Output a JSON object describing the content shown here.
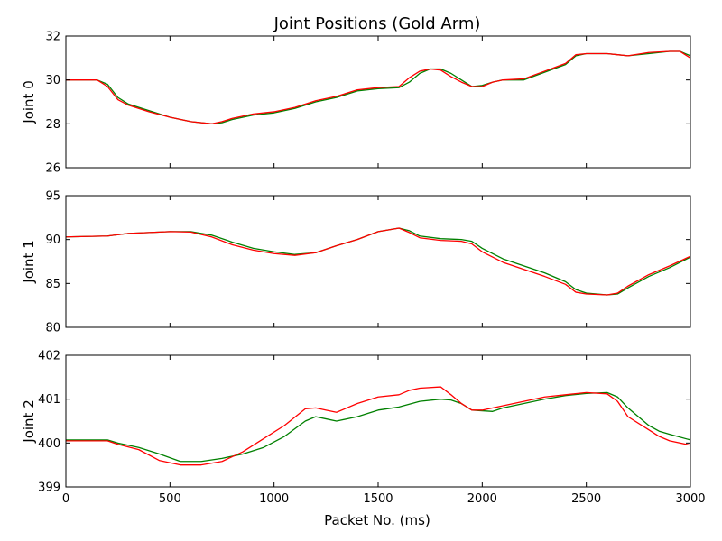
{
  "figure": {
    "title": "Joint Positions (Gold Arm)",
    "xlabel": "Packet No. (ms)"
  },
  "colors": {
    "series_a": "#008000",
    "series_b": "#ff0000",
    "axes": "#000000",
    "background": "#ffffff"
  },
  "chart_data": [
    {
      "type": "line",
      "ylabel": "Joint 0",
      "xlim": [
        0,
        3000
      ],
      "ylim": [
        26,
        32
      ],
      "yticks": [
        26,
        28,
        30,
        32
      ],
      "xticks": [],
      "grid": false,
      "series": [
        {
          "color": "#008000",
          "points": [
            [
              0,
              30.0
            ],
            [
              150,
              30.0
            ],
            [
              200,
              29.8
            ],
            [
              250,
              29.2
            ],
            [
              300,
              28.9
            ],
            [
              400,
              28.6
            ],
            [
              500,
              28.3
            ],
            [
              600,
              28.1
            ],
            [
              700,
              28.0
            ],
            [
              750,
              28.05
            ],
            [
              800,
              28.2
            ],
            [
              900,
              28.4
            ],
            [
              1000,
              28.5
            ],
            [
              1100,
              28.7
            ],
            [
              1200,
              29.0
            ],
            [
              1300,
              29.2
            ],
            [
              1400,
              29.5
            ],
            [
              1500,
              29.6
            ],
            [
              1600,
              29.65
            ],
            [
              1650,
              29.9
            ],
            [
              1700,
              30.3
            ],
            [
              1750,
              30.5
            ],
            [
              1800,
              30.5
            ],
            [
              1850,
              30.3
            ],
            [
              1900,
              30.0
            ],
            [
              1950,
              29.7
            ],
            [
              2000,
              29.75
            ],
            [
              2050,
              29.9
            ],
            [
              2100,
              30.0
            ],
            [
              2200,
              30.0
            ],
            [
              2300,
              30.35
            ],
            [
              2400,
              30.7
            ],
            [
              2450,
              31.1
            ],
            [
              2500,
              31.2
            ],
            [
              2600,
              31.2
            ],
            [
              2650,
              31.15
            ],
            [
              2700,
              31.1
            ],
            [
              2800,
              31.2
            ],
            [
              2900,
              31.3
            ],
            [
              2950,
              31.3
            ],
            [
              3000,
              31.1
            ]
          ]
        },
        {
          "color": "#ff0000",
          "points": [
            [
              0,
              30.0
            ],
            [
              150,
              30.0
            ],
            [
              200,
              29.7
            ],
            [
              250,
              29.1
            ],
            [
              300,
              28.85
            ],
            [
              400,
              28.55
            ],
            [
              500,
              28.3
            ],
            [
              600,
              28.1
            ],
            [
              700,
              28.0
            ],
            [
              750,
              28.1
            ],
            [
              800,
              28.25
            ],
            [
              900,
              28.45
            ],
            [
              1000,
              28.55
            ],
            [
              1100,
              28.75
            ],
            [
              1200,
              29.05
            ],
            [
              1300,
              29.25
            ],
            [
              1400,
              29.55
            ],
            [
              1500,
              29.65
            ],
            [
              1600,
              29.7
            ],
            [
              1650,
              30.1
            ],
            [
              1700,
              30.4
            ],
            [
              1750,
              30.5
            ],
            [
              1800,
              30.45
            ],
            [
              1850,
              30.15
            ],
            [
              1900,
              29.9
            ],
            [
              1950,
              29.7
            ],
            [
              2000,
              29.7
            ],
            [
              2050,
              29.9
            ],
            [
              2100,
              30.0
            ],
            [
              2200,
              30.05
            ],
            [
              2300,
              30.4
            ],
            [
              2400,
              30.75
            ],
            [
              2450,
              31.15
            ],
            [
              2500,
              31.2
            ],
            [
              2600,
              31.2
            ],
            [
              2650,
              31.15
            ],
            [
              2700,
              31.1
            ],
            [
              2800,
              31.25
            ],
            [
              2900,
              31.3
            ],
            [
              2950,
              31.3
            ],
            [
              3000,
              31.0
            ]
          ]
        }
      ]
    },
    {
      "type": "line",
      "ylabel": "Joint 1",
      "xlim": [
        0,
        3000
      ],
      "ylim": [
        80,
        95
      ],
      "yticks": [
        80,
        85,
        90,
        95
      ],
      "xticks": [],
      "grid": false,
      "series": [
        {
          "color": "#008000",
          "points": [
            [
              0,
              90.3
            ],
            [
              200,
              90.4
            ],
            [
              300,
              90.7
            ],
            [
              400,
              90.8
            ],
            [
              500,
              90.9
            ],
            [
              600,
              90.9
            ],
            [
              700,
              90.5
            ],
            [
              800,
              89.7
            ],
            [
              900,
              89.0
            ],
            [
              1000,
              88.6
            ],
            [
              1100,
              88.3
            ],
            [
              1200,
              88.5
            ],
            [
              1300,
              89.3
            ],
            [
              1400,
              90.0
            ],
            [
              1500,
              90.9
            ],
            [
              1600,
              91.3
            ],
            [
              1650,
              91.0
            ],
            [
              1700,
              90.4
            ],
            [
              1800,
              90.1
            ],
            [
              1900,
              90.0
            ],
            [
              1950,
              89.8
            ],
            [
              2000,
              89.0
            ],
            [
              2100,
              87.8
            ],
            [
              2200,
              87.0
            ],
            [
              2300,
              86.2
            ],
            [
              2400,
              85.2
            ],
            [
              2450,
              84.3
            ],
            [
              2500,
              83.9
            ],
            [
              2600,
              83.7
            ],
            [
              2650,
              83.8
            ],
            [
              2700,
              84.5
            ],
            [
              2800,
              85.8
            ],
            [
              2900,
              86.8
            ],
            [
              3000,
              88.0
            ]
          ]
        },
        {
          "color": "#ff0000",
          "points": [
            [
              0,
              90.3
            ],
            [
              200,
              90.4
            ],
            [
              300,
              90.7
            ],
            [
              400,
              90.8
            ],
            [
              500,
              90.9
            ],
            [
              600,
              90.85
            ],
            [
              700,
              90.3
            ],
            [
              800,
              89.4
            ],
            [
              900,
              88.8
            ],
            [
              1000,
              88.4
            ],
            [
              1100,
              88.2
            ],
            [
              1200,
              88.5
            ],
            [
              1300,
              89.3
            ],
            [
              1400,
              90.0
            ],
            [
              1500,
              90.9
            ],
            [
              1600,
              91.3
            ],
            [
              1650,
              90.8
            ],
            [
              1700,
              90.2
            ],
            [
              1800,
              89.9
            ],
            [
              1900,
              89.8
            ],
            [
              1950,
              89.5
            ],
            [
              2000,
              88.6
            ],
            [
              2100,
              87.4
            ],
            [
              2200,
              86.6
            ],
            [
              2300,
              85.8
            ],
            [
              2400,
              84.9
            ],
            [
              2450,
              84.0
            ],
            [
              2500,
              83.8
            ],
            [
              2600,
              83.7
            ],
            [
              2650,
              83.9
            ],
            [
              2700,
              84.7
            ],
            [
              2800,
              86.0
            ],
            [
              2900,
              87.0
            ],
            [
              3000,
              88.1
            ]
          ]
        }
      ]
    },
    {
      "type": "line",
      "ylabel": "Joint 2",
      "xlim": [
        0,
        3000
      ],
      "ylim": [
        399,
        402
      ],
      "yticks": [
        399,
        400,
        401,
        402
      ],
      "xticks": [
        0,
        500,
        1000,
        1500,
        2000,
        2500,
        3000
      ],
      "grid": false,
      "series": [
        {
          "color": "#008000",
          "points": [
            [
              0,
              400.07
            ],
            [
              200,
              400.07
            ],
            [
              250,
              400.0
            ],
            [
              350,
              399.9
            ],
            [
              450,
              399.75
            ],
            [
              550,
              399.58
            ],
            [
              650,
              399.58
            ],
            [
              750,
              399.65
            ],
            [
              850,
              399.75
            ],
            [
              950,
              399.9
            ],
            [
              1050,
              400.15
            ],
            [
              1150,
              400.5
            ],
            [
              1200,
              400.6
            ],
            [
              1250,
              400.55
            ],
            [
              1300,
              400.5
            ],
            [
              1400,
              400.6
            ],
            [
              1500,
              400.75
            ],
            [
              1600,
              400.82
            ],
            [
              1700,
              400.95
            ],
            [
              1800,
              401.0
            ],
            [
              1850,
              400.98
            ],
            [
              1900,
              400.9
            ],
            [
              1950,
              400.75
            ],
            [
              2050,
              400.72
            ],
            [
              2100,
              400.8
            ],
            [
              2200,
              400.9
            ],
            [
              2300,
              401.0
            ],
            [
              2400,
              401.08
            ],
            [
              2500,
              401.13
            ],
            [
              2600,
              401.15
            ],
            [
              2650,
              401.05
            ],
            [
              2700,
              400.8
            ],
            [
              2800,
              400.4
            ],
            [
              2850,
              400.27
            ],
            [
              2900,
              400.2
            ],
            [
              3000,
              400.07
            ]
          ]
        },
        {
          "color": "#ff0000",
          "points": [
            [
              0,
              400.05
            ],
            [
              200,
              400.05
            ],
            [
              250,
              399.97
            ],
            [
              350,
              399.85
            ],
            [
              450,
              399.6
            ],
            [
              550,
              399.5
            ],
            [
              650,
              399.5
            ],
            [
              750,
              399.58
            ],
            [
              850,
              399.8
            ],
            [
              950,
              400.1
            ],
            [
              1050,
              400.4
            ],
            [
              1150,
              400.78
            ],
            [
              1200,
              400.8
            ],
            [
              1250,
              400.75
            ],
            [
              1300,
              400.7
            ],
            [
              1400,
              400.9
            ],
            [
              1500,
              401.05
            ],
            [
              1600,
              401.1
            ],
            [
              1650,
              401.2
            ],
            [
              1700,
              401.25
            ],
            [
              1800,
              401.28
            ],
            [
              1850,
              401.1
            ],
            [
              1900,
              400.9
            ],
            [
              1950,
              400.75
            ],
            [
              2000,
              400.75
            ],
            [
              2100,
              400.85
            ],
            [
              2200,
              400.95
            ],
            [
              2300,
              401.05
            ],
            [
              2400,
              401.1
            ],
            [
              2500,
              401.15
            ],
            [
              2600,
              401.12
            ],
            [
              2650,
              400.95
            ],
            [
              2700,
              400.6
            ],
            [
              2800,
              400.3
            ],
            [
              2850,
              400.15
            ],
            [
              2900,
              400.05
            ],
            [
              3000,
              399.95
            ]
          ]
        }
      ]
    }
  ]
}
